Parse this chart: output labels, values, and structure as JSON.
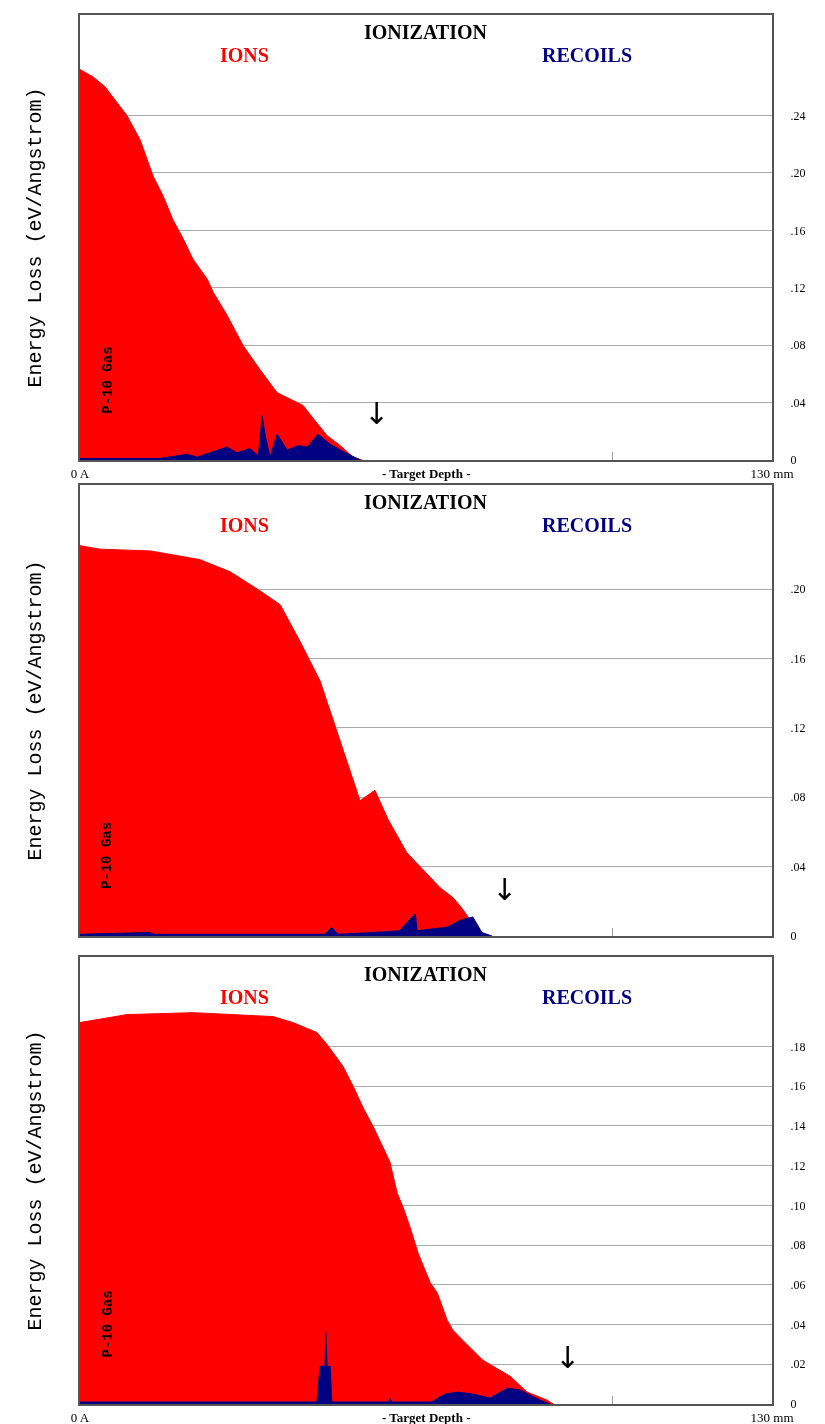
{
  "chart_data": [
    {
      "type": "area",
      "title": "IONIZATION",
      "xlabel": "- Target Depth -",
      "ylabel": "Energy Loss (eV/Angstrom)",
      "grid": "y",
      "legend": false,
      "tick_labels": "xy",
      "xlim": [
        0,
        130
      ],
      "xticks": [
        {
          "value": 0,
          "label": "0 A"
        },
        {
          "value": 100,
          "label": null
        },
        {
          "value": 130,
          "label": "130 mm"
        }
      ],
      "ylim": [
        0,
        0.31
      ],
      "yticks": [
        0,
        {
          "value": 0.04,
          "label": ".04"
        },
        {
          "value": 0.08,
          "label": ".08"
        },
        {
          "value": 0.12,
          "label": ".12"
        },
        {
          "value": 0.16,
          "label": ".16"
        },
        {
          "value": 0.2,
          "label": ".20"
        },
        {
          "value": 0.24,
          "label": ".24"
        }
      ],
      "series": [
        {
          "name": "IONS",
          "color": "#ff0000",
          "x": [
            0,
            2.4,
            4.7,
            8.8,
            11.3,
            13.7,
            15.6,
            17.5,
            19.4,
            21.2,
            23.9,
            25.0,
            27.6,
            30.6,
            33.8,
            37.0,
            41.9,
            43.8,
            46.4,
            48.9,
            51.3,
            53.0
          ],
          "values": [
            0.272,
            0.267,
            0.26,
            0.24,
            0.223,
            0.198,
            0.184,
            0.167,
            0.154,
            0.14,
            0.126,
            0.117,
            0.101,
            0.08,
            0.063,
            0.047,
            0.038,
            0.029,
            0.017,
            0.01,
            0.002,
            0
          ]
        },
        {
          "name": "RECOILS",
          "color": "#000080",
          "x": [
            0,
            15,
            20.1,
            22,
            27.6,
            29.5,
            31.9,
            33.5,
            34.2,
            34.8,
            35.7,
            37.0,
            38.9,
            41.0,
            42.7,
            44.7,
            47.0,
            49.4,
            52.6
          ],
          "values": [
            0.001,
            0.001,
            0.004,
            0.002,
            0.009,
            0.005,
            0.008,
            0.003,
            0.031,
            0.017,
            0.002,
            0.018,
            0.007,
            0.01,
            0.009,
            0.018,
            0.011,
            0.006,
            0
          ]
        }
      ],
      "annotations": [
        "P-10 Gas",
        "↓"
      ]
    },
    {
      "type": "area",
      "title": "IONIZATION",
      "ylabel": "Energy Loss (eV/Angstrom)",
      "grid": "y",
      "legend": false,
      "tick_labels": "y",
      "xlim": [
        0,
        130
      ],
      "xticks": [
        {
          "value": 0,
          "label": null
        },
        {
          "value": 100,
          "label": null
        },
        {
          "value": 130,
          "label": null
        }
      ],
      "ylim": [
        0,
        0.26
      ],
      "yticks": [
        0,
        {
          "value": 0.04,
          "label": ".04"
        },
        {
          "value": 0.08,
          "label": ".08"
        },
        {
          "value": 0.12,
          "label": ".12"
        },
        {
          "value": 0.16,
          "label": ".16"
        },
        {
          "value": 0.2,
          "label": ".20"
        }
      ],
      "series": [
        {
          "name": "IONS",
          "color": "#ff0000",
          "x": [
            0,
            3.8,
            13.2,
            22.5,
            28.2,
            33.8,
            37.6,
            41.3,
            45.1,
            48.8,
            52.6,
            55.4,
            57.9,
            61.4,
            64.5,
            67.6,
            70.1,
            72.0,
            73.3,
            75.2,
            77.0
          ],
          "values": [
            0.225,
            0.223,
            0.222,
            0.217,
            0.21,
            0.199,
            0.191,
            0.17,
            0.147,
            0.113,
            0.078,
            0.084,
            0.067,
            0.048,
            0.038,
            0.028,
            0.022,
            0.015,
            0.009,
            0.002,
            0
          ]
        },
        {
          "name": "RECOILS",
          "color": "#000080",
          "x": [
            0,
            13,
            14,
            46,
            47.3,
            48.5,
            55,
            60,
            63,
            63.3,
            66,
            68.9,
            71.4,
            73.8,
            75.5,
            77.4
          ],
          "values": [
            0.001,
            0.002,
            0.001,
            0.001,
            0.005,
            0.001,
            0.002,
            0.003,
            0.013,
            0.003,
            0.004,
            0.005,
            0.009,
            0.011,
            0.002,
            0
          ]
        }
      ],
      "annotations": [
        "P-10 Gas",
        "↓"
      ]
    },
    {
      "type": "area",
      "title": "IONIZATION",
      "xlabel": "- Target Depth -",
      "ylabel": "Energy Loss (eV/Angstrom)",
      "grid": "y",
      "legend": false,
      "tick_labels": "xy",
      "xlim": [
        0,
        130
      ],
      "xticks": [
        {
          "value": 0,
          "label": "0 A"
        },
        {
          "value": 100,
          "label": null
        },
        {
          "value": 130,
          "label": "130 mm"
        }
      ],
      "ylim": [
        0,
        0.225
      ],
      "yticks": [
        0,
        {
          "value": 0.02,
          "label": ".02"
        },
        {
          "value": 0.04,
          "label": ".04"
        },
        {
          "value": 0.06,
          "label": ".06"
        },
        {
          "value": 0.08,
          "label": ".08"
        },
        {
          "value": 0.1,
          "label": ".10"
        },
        {
          "value": 0.12,
          "label": ".12"
        },
        {
          "value": 0.14,
          "label": ".14"
        },
        {
          "value": 0.16,
          "label": ".16"
        },
        {
          "value": 0.18,
          "label": ".18"
        }
      ],
      "series": [
        {
          "name": "IONS",
          "color": "#ff0000",
          "x": [
            0,
            8.8,
            21.2,
            36.3,
            40.0,
            44.5,
            46.4,
            49.4,
            51.3,
            53.2,
            55.0,
            58.2,
            59.6,
            60.7,
            62.0,
            63.5,
            65.8,
            67.1,
            69.0,
            70.1,
            72.3,
            75.7,
            77.6,
            80.8,
            84.0,
            87.7,
            88.9
          ],
          "values": [
            0.192,
            0.196,
            0.197,
            0.195,
            0.192,
            0.187,
            0.181,
            0.17,
            0.16,
            0.149,
            0.14,
            0.122,
            0.106,
            0.099,
            0.089,
            0.076,
            0.061,
            0.056,
            0.042,
            0.037,
            0.031,
            0.022,
            0.019,
            0.014,
            0.006,
            0.002,
            0
          ]
        },
        {
          "name": "RECOILS",
          "color": "#000080",
          "x": [
            0,
            44.5,
            45.1,
            46.0,
            46.2,
            46.4,
            47.0,
            47.3,
            58.0,
            58.2,
            58.6,
            66,
            68.6,
            71.0,
            73.8,
            77,
            80.4,
            82.7,
            86.4,
            88.3
          ],
          "values": [
            0.001,
            0.001,
            0.019,
            0.019,
            0.036,
            0.019,
            0.019,
            0.001,
            0.001,
            0.003,
            0.001,
            0.001,
            0.005,
            0.006,
            0.005,
            0.003,
            0.008,
            0.007,
            0.002,
            0
          ]
        }
      ],
      "annotations": [
        "P-10 Gas",
        "↓"
      ]
    }
  ]
}
